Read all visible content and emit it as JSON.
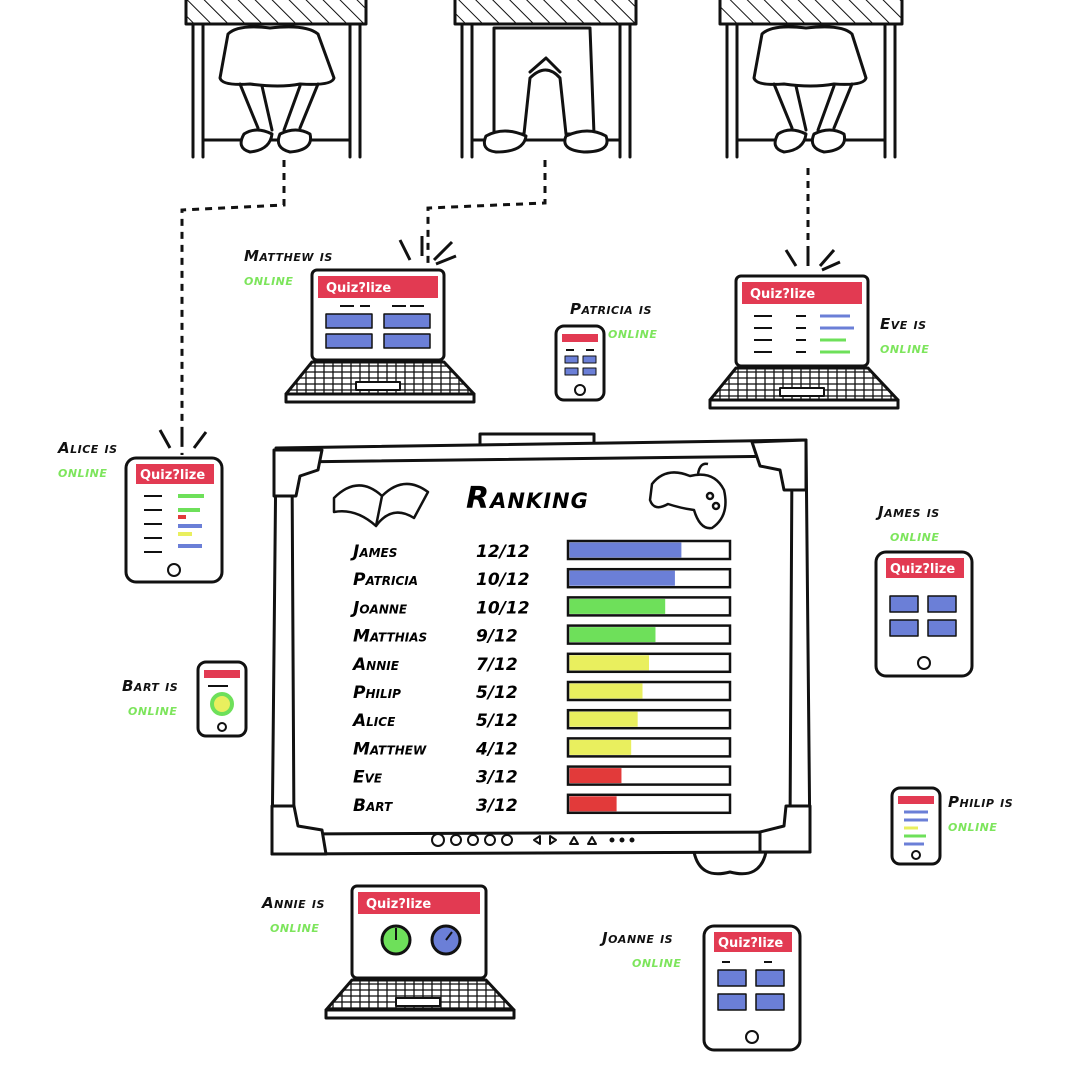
{
  "brand": "Quiz?lize",
  "colors": {
    "brand_red": "#e23a52",
    "online_green": "#7de55c",
    "blue": "#6b7fd7",
    "green": "#6ee05a",
    "yellow": "#e9ef5e",
    "red": "#e23a3a",
    "ink": "#111111"
  },
  "devices": [
    {
      "id": "matthew",
      "name": "Matthew is",
      "status": "online",
      "device": "laptop"
    },
    {
      "id": "patricia",
      "name": "Patricia is",
      "status": "online",
      "device": "phone"
    },
    {
      "id": "eve",
      "name": "Eve is",
      "status": "online",
      "device": "laptop"
    },
    {
      "id": "alice",
      "name": "Alice is",
      "status": "online",
      "device": "tablet"
    },
    {
      "id": "james",
      "name": "James is",
      "status": "online",
      "device": "tablet"
    },
    {
      "id": "bart",
      "name": "Bart is",
      "status": "online",
      "device": "phone"
    },
    {
      "id": "philip",
      "name": "Philip is",
      "status": "online",
      "device": "phone"
    },
    {
      "id": "annie",
      "name": "Annie is",
      "status": "online",
      "device": "laptop"
    },
    {
      "id": "joanne",
      "name": "Joanne is",
      "status": "online",
      "device": "tablet"
    }
  ],
  "ranking": {
    "title": "Ranking",
    "rows": [
      {
        "name": "James",
        "score": "12/12",
        "fraction": 0.7,
        "color": "blue"
      },
      {
        "name": "Patricia",
        "score": "10/12",
        "fraction": 0.66,
        "color": "blue"
      },
      {
        "name": "Joanne",
        "score": "10/12",
        "fraction": 0.6,
        "color": "green"
      },
      {
        "name": "Matthias",
        "score": "9/12",
        "fraction": 0.54,
        "color": "green"
      },
      {
        "name": "Annie",
        "score": "7/12",
        "fraction": 0.5,
        "color": "yellow"
      },
      {
        "name": "Philip",
        "score": "5/12",
        "fraction": 0.46,
        "color": "yellow"
      },
      {
        "name": "Alice",
        "score": "5/12",
        "fraction": 0.43,
        "color": "yellow"
      },
      {
        "name": "Matthew",
        "score": "4/12",
        "fraction": 0.39,
        "color": "yellow"
      },
      {
        "name": "Eve",
        "score": "3/12",
        "fraction": 0.33,
        "color": "red"
      },
      {
        "name": "Bart",
        "score": "3/12",
        "fraction": 0.3,
        "color": "red"
      }
    ]
  }
}
